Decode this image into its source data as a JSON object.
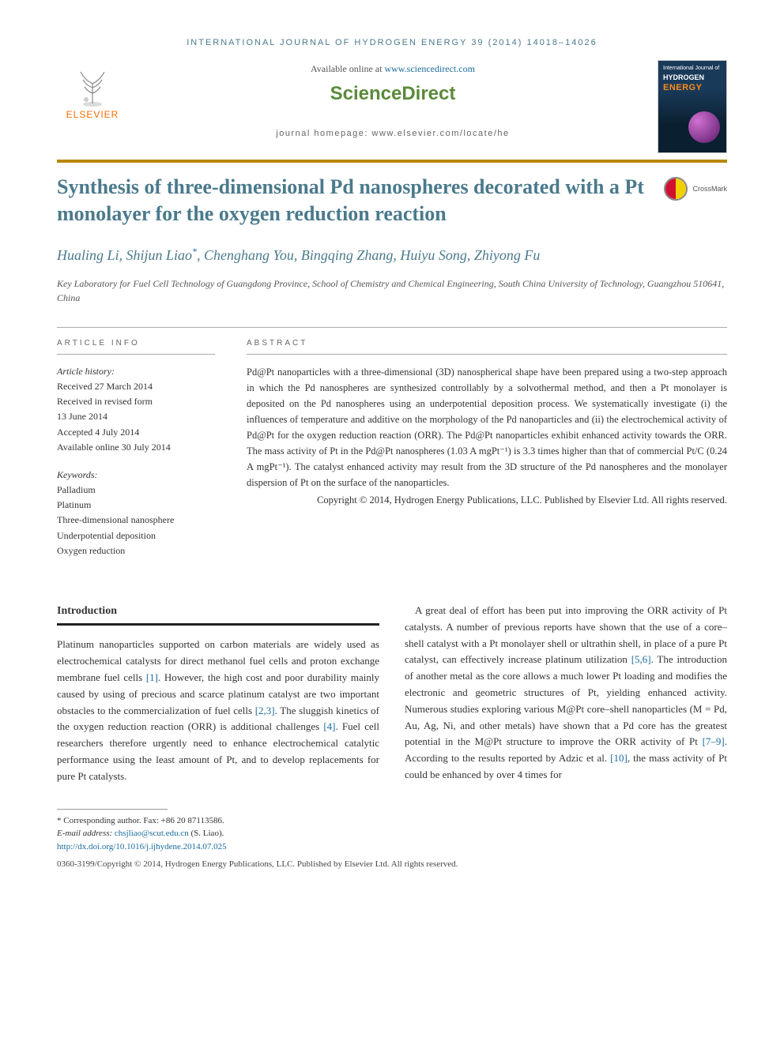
{
  "journal_header": "INTERNATIONAL JOURNAL OF HYDROGEN ENERGY 39 (2014) 14018–14026",
  "top": {
    "available_prefix": "Available online at ",
    "available_link": "www.sciencedirect.com",
    "sciencedirect": "ScienceDirect",
    "homepage_label": "journal homepage: www.elsevier.com/locate/he",
    "elsevier_label": "ELSEVIER"
  },
  "cover": {
    "line1": "International Journal of",
    "line2": "HYDROGEN",
    "line3": "ENERGY"
  },
  "title": "Synthesis of three-dimensional Pd nanospheres decorated with a Pt monolayer for the oxygen reduction reaction",
  "crossmark": "CrossMark",
  "authors_html": "Hualing Li, Shijun Liao<sup>*</sup>, Chenghang You, Bingqing Zhang, Huiyu Song, Zhiyong Fu",
  "affiliation": "Key Laboratory for Fuel Cell Technology of Guangdong Province, School of Chemistry and Chemical Engineering, South China University of Technology, Guangzhou 510641, China",
  "meta": {
    "info_label": "ARTICLE INFO",
    "abstract_label": "ABSTRACT",
    "history_label": "Article history:",
    "history": [
      "Received 27 March 2014",
      "Received in revised form",
      "13 June 2014",
      "Accepted 4 July 2014",
      "Available online 30 July 2014"
    ],
    "keywords_label": "Keywords:",
    "keywords": [
      "Palladium",
      "Platinum",
      "Three-dimensional nanosphere",
      "Underpotential deposition",
      "Oxygen reduction"
    ]
  },
  "abstract": "Pd@Pt nanoparticles with a three-dimensional (3D) nanospherical shape have been prepared using a two-step approach in which the Pd nanospheres are synthesized controllably by a solvothermal method, and then a Pt monolayer is deposited on the Pd nanospheres using an underpotential deposition process. We systematically investigate (i) the influences of temperature and additive on the morphology of the Pd nanoparticles and (ii) the electrochemical activity of Pd@Pt for the oxygen reduction reaction (ORR). The Pd@Pt nanoparticles exhibit enhanced activity towards the ORR. The mass activity of Pt in the Pd@Pt nanospheres (1.03 A mgPt⁻¹) is 3.3 times higher than that of commercial Pt/C (0.24 A mgPt⁻¹). The catalyst enhanced activity may result from the 3D structure of the Pd nanospheres and the monolayer dispersion of Pt on the surface of the nanoparticles.",
  "copyright": "Copyright © 2014, Hydrogen Energy Publications, LLC. Published by Elsevier Ltd. All rights reserved.",
  "intro_heading": "Introduction",
  "body": {
    "col1_html": "Platinum nanoparticles supported on carbon materials are widely used as electrochemical catalysts for direct methanol fuel cells and proton exchange membrane fuel cells <a class=\"ref\" href=\"#\">[1]</a>. However, the high cost and poor durability mainly caused by using of precious and scarce platinum catalyst are two important obstacles to the commercialization of fuel cells <a class=\"ref\" href=\"#\">[2,3]</a>. The sluggish kinetics of the oxygen reduction reaction (ORR) is additional challenges <a class=\"ref\" href=\"#\">[4]</a>. Fuel cell researchers therefore urgently need to enhance electrochemical catalytic performance using the least amount of Pt, and to develop replacements for pure Pt catalysts.",
    "col2_html": "A great deal of effort has been put into improving the ORR activity of Pt catalysts. A number of previous reports have shown that the use of a core–shell catalyst with a Pt monolayer shell or ultrathin shell, in place of a pure Pt catalyst, can effectively increase platinum utilization <a class=\"ref\" href=\"#\">[5,6]</a>. The introduction of another metal as the core allows a much lower Pt loading and modifies the electronic and geometric structures of Pt, yielding enhanced activity. Numerous studies exploring various M@Pt core–shell nanoparticles (M = Pd, Au, Ag, Ni, and other metals) have shown that a Pd core has the greatest potential in the M@Pt structure to improve the ORR activity of Pt <a class=\"ref\" href=\"#\">[7–9]</a>. According to the results reported by Adzic et al. <a class=\"ref\" href=\"#\">[10]</a>, the mass activity of Pt could be enhanced by over 4 times for"
  },
  "footnotes": {
    "corresponding": "* Corresponding author. Fax: +86 20 87113586.",
    "email_label": "E-mail address: ",
    "email": "chsjliao@scut.edu.cn",
    "email_suffix": " (S. Liao).",
    "doi": "http://dx.doi.org/10.1016/j.ijhydene.2014.07.025",
    "issn_line": "0360-3199/Copyright © 2014, Hydrogen Energy Publications, LLC. Published by Elsevier Ltd. All rights reserved."
  },
  "colors": {
    "accent_teal": "#4a7a8c",
    "link_blue": "#1a6b9e",
    "title_bar": "#b8860b",
    "elsevier_orange": "#ff6b00",
    "sd_green": "#5a8a3a"
  }
}
